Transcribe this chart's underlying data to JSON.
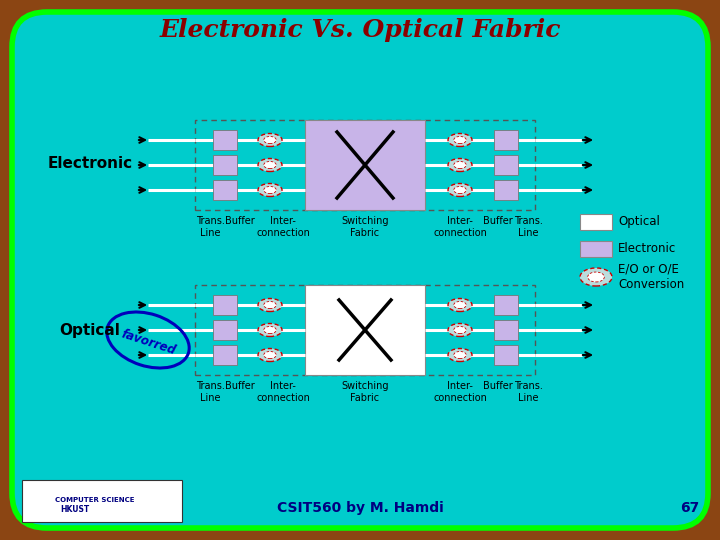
{
  "title": "Electronic Vs. Optical Fabric",
  "title_color": "#8B0000",
  "title_fontsize": 18,
  "bg_outer": "#8B4513",
  "slide_bg": "#00CCCC",
  "electronic_color": "#C8B4E8",
  "optical_sf_color": "#FFFFFF",
  "box_border": "#555555",
  "eo_ellipse_border": "#CC0000",
  "eo_ellipse_fill": "#AACCCC",
  "bottom_text": "CSIT560 by M. Hamdi",
  "page_num": "67",
  "favored_color": "#0000BB",
  "green_border": "#00FF00",
  "label_fontsize": 7
}
